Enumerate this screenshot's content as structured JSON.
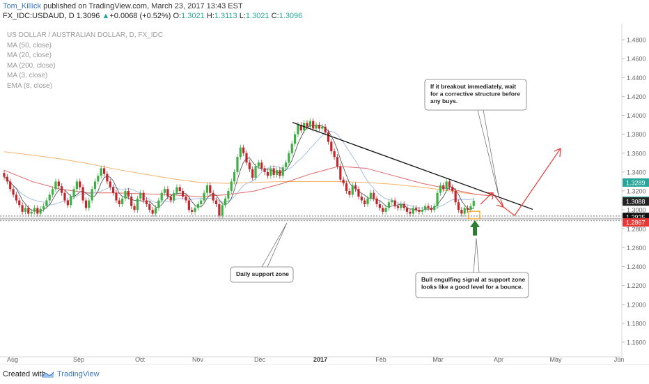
{
  "header": {
    "author": "Tom_Killick",
    "published_text": " published on TradingView.com, March 23, 2017 13:43 EST",
    "symbol": "FX_IDC:USDAUD, D",
    "last": "1.3096",
    "change": "+0.0068 (+0.52%)",
    "o_label": "O:",
    "o_val": "1.3021",
    "h_label": "H:",
    "h_val": "1.3113",
    "l_label": "L:",
    "l_val": "1.3021",
    "c_label": "C:",
    "c_val": "1.3096",
    "up_arrow": "▲"
  },
  "legend": {
    "title": "US DOLLAR / AUSTRALIAN DOLLAR, D, FX_IDC",
    "items": [
      "MA (50, close)",
      "MA (20, close)",
      "MA (200, close)",
      "MA (3, close)",
      "EMA (8, close)"
    ]
  },
  "footer": {
    "created": "Created with",
    "brand": "TradingView"
  },
  "chart_data": {
    "type": "candlestick",
    "symbol": "USDAUD",
    "timeframe": "D",
    "x_ticks": [
      "Aug",
      "Sep",
      "Oct",
      "Nov",
      "Dec",
      "2017",
      "Feb",
      "Mar",
      "Apr",
      "May",
      "Jun"
    ],
    "y_ticks": [
      "1.4800",
      "1.4600",
      "1.4400",
      "1.4200",
      "1.4000",
      "1.3800",
      "1.3600",
      "1.3400",
      "1.3200",
      "1.3000",
      "1.2800",
      "1.2600",
      "1.2400",
      "1.2200",
      "1.2000",
      "1.1800",
      "1.1600"
    ],
    "y_range": [
      1.15,
      1.49
    ],
    "price_labels": [
      {
        "text": "1.3289",
        "value": 1.3289,
        "color": "#26a69a"
      },
      {
        "text": "1.3096",
        "value": 1.3096,
        "color": "#26a69a"
      },
      {
        "text": "1.3088",
        "value": 1.3088,
        "color": "#222222"
      },
      {
        "text": "1.2925",
        "value": 1.2925,
        "color": "#111111"
      },
      {
        "text": "1.2872",
        "value": 1.2872,
        "color": "#111111"
      },
      {
        "text": "1.2867",
        "value": 1.2867,
        "color": "#e53935"
      }
    ],
    "support_lines": [
      1.2935,
      1.2905,
      1.2885
    ],
    "closes": [
      1.335,
      1.33,
      1.322,
      1.316,
      1.31,
      1.305,
      1.298,
      1.302,
      1.296,
      1.298,
      1.302,
      1.296,
      1.301,
      1.304,
      1.31,
      1.316,
      1.322,
      1.33,
      1.325,
      1.318,
      1.31,
      1.305,
      1.314,
      1.322,
      1.33,
      1.324,
      1.31,
      1.302,
      1.31,
      1.322,
      1.33,
      1.336,
      1.344,
      1.338,
      1.33,
      1.324,
      1.318,
      1.31,
      1.306,
      1.312,
      1.32,
      1.314,
      1.304,
      1.3,
      1.312,
      1.318,
      1.31,
      1.306,
      1.3,
      1.296,
      1.302,
      1.31,
      1.318,
      1.322,
      1.314,
      1.31,
      1.318,
      1.324,
      1.32,
      1.314,
      1.31,
      1.3,
      1.298,
      1.302,
      1.306,
      1.31,
      1.318,
      1.326,
      1.318,
      1.31,
      1.306,
      1.294,
      1.305,
      1.312,
      1.32,
      1.33,
      1.34,
      1.356,
      1.366,
      1.36,
      1.35,
      1.343,
      1.334,
      1.346,
      1.35,
      1.344,
      1.34,
      1.336,
      1.344,
      1.337,
      1.342,
      1.336,
      1.345,
      1.35,
      1.36,
      1.37,
      1.38,
      1.39,
      1.384,
      1.392,
      1.388,
      1.394,
      1.386,
      1.39,
      1.386,
      1.388,
      1.382,
      1.372,
      1.362,
      1.356,
      1.346,
      1.332,
      1.328,
      1.32,
      1.316,
      1.326,
      1.322,
      1.314,
      1.31,
      1.306,
      1.312,
      1.318,
      1.312,
      1.306,
      1.302,
      1.298,
      1.302,
      1.308,
      1.31,
      1.304,
      1.302,
      1.306,
      1.302,
      1.298,
      1.296,
      1.302,
      1.3,
      1.298,
      1.3,
      1.304,
      1.302,
      1.3,
      1.304,
      1.318,
      1.326,
      1.322,
      1.33,
      1.324,
      1.32,
      1.308,
      1.3,
      1.296,
      1.302,
      1.3,
      1.304,
      1.3096
    ],
    "ma_series": [
      {
        "name": "MA (200, close)",
        "color": "#f6b26b",
        "points": [
          [
            0,
            1.3615
          ],
          [
            40,
            1.358
          ],
          [
            80,
            1.354
          ],
          [
            120,
            1.349
          ],
          [
            160,
            1.343
          ],
          [
            200,
            1.338
          ],
          [
            240,
            1.333
          ],
          [
            280,
            1.329
          ],
          [
            320,
            1.328
          ],
          [
            360,
            1.329
          ],
          [
            400,
            1.33
          ],
          [
            440,
            1.33
          ],
          [
            480,
            1.33
          ],
          [
            520,
            1.329
          ],
          [
            560,
            1.327
          ],
          [
            600,
            1.324
          ],
          [
            640,
            1.32
          ],
          [
            680,
            1.316
          ],
          [
            700,
            1.315
          ]
        ]
      },
      {
        "name": "MA (50, close)",
        "color": "#e06666",
        "points": [
          [
            0,
            1.342
          ],
          [
            40,
            1.33
          ],
          [
            80,
            1.322
          ],
          [
            120,
            1.318
          ],
          [
            160,
            1.318
          ],
          [
            200,
            1.317
          ],
          [
            240,
            1.316
          ],
          [
            280,
            1.314
          ],
          [
            320,
            1.316
          ],
          [
            360,
            1.32
          ],
          [
            400,
            1.328
          ],
          [
            440,
            1.338
          ],
          [
            480,
            1.346
          ],
          [
            520,
            1.344
          ],
          [
            560,
            1.336
          ],
          [
            600,
            1.328
          ],
          [
            640,
            1.322
          ],
          [
            680,
            1.316
          ],
          [
            700,
            1.315
          ]
        ]
      }
    ],
    "trendline": {
      "from": [
        420,
        1.3925
      ],
      "to": [
        765,
        1.3005
      ]
    },
    "annotations": [
      {
        "text": [
          "If it breakout immediately, wait",
          "for a corrective structure before",
          "any buys."
        ]
      },
      {
        "text": [
          "Daily support zone"
        ]
      },
      {
        "text": [
          "Bull engulfing signal at support zone",
          "looks like a good level for a bounce."
        ]
      }
    ]
  }
}
